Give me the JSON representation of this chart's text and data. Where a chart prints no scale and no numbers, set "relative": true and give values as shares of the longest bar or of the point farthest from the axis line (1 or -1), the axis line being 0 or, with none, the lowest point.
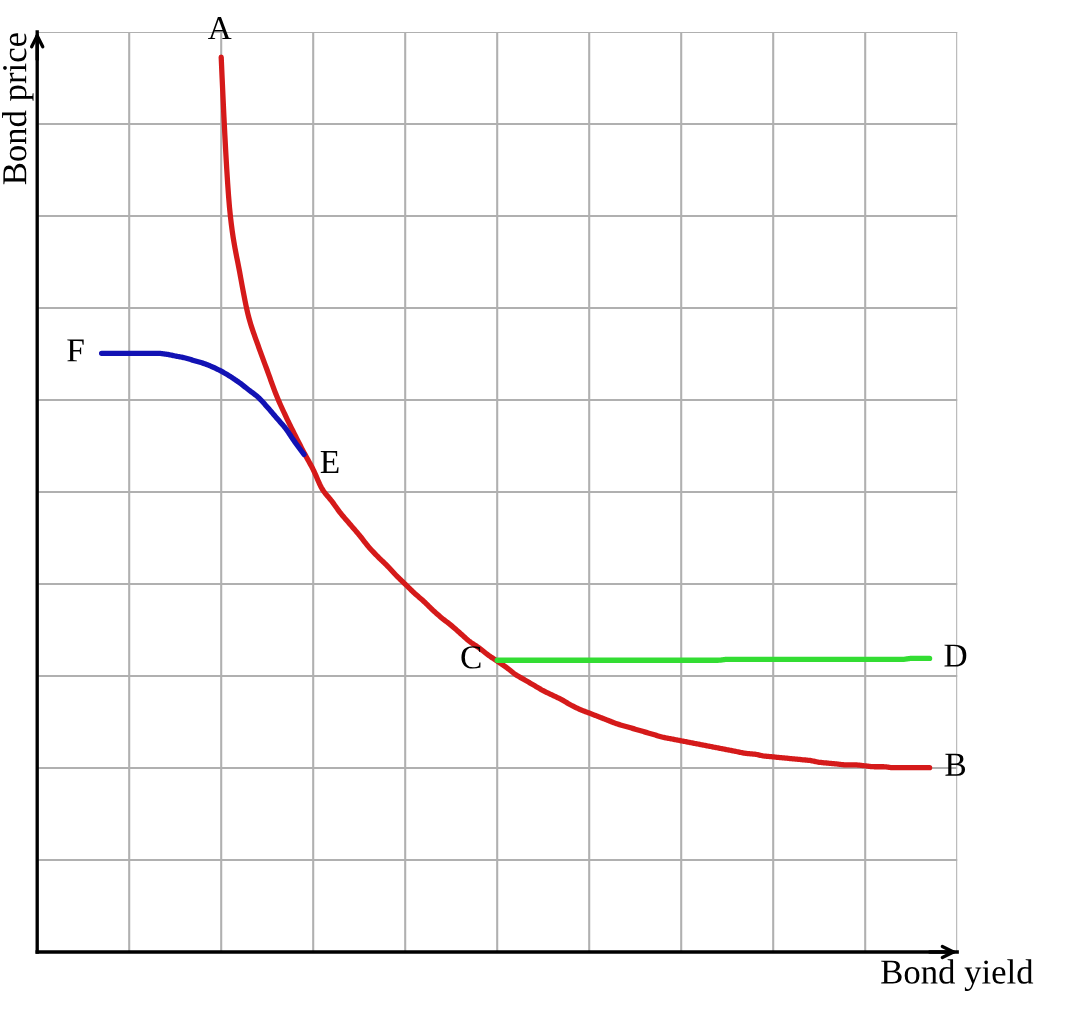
{
  "chart_data": {
    "type": "line",
    "xlabel": "Bond yield",
    "ylabel": "Bond price",
    "relative": true,
    "grid": true,
    "line_style": "solid",
    "categories": [
      null,
      null,
      null,
      null,
      null,
      null,
      null,
      null,
      null,
      null,
      null,
      null,
      null,
      null,
      null,
      null,
      null,
      null,
      null,
      null,
      null,
      null,
      null,
      null,
      null,
      null,
      null,
      null,
      null,
      null,
      null,
      null,
      null,
      null,
      null,
      null,
      null,
      null,
      null,
      null,
      null,
      null,
      null,
      null,
      null,
      null,
      null,
      null,
      null,
      null,
      null,
      null,
      null,
      null,
      null,
      null,
      null,
      null,
      null,
      null,
      null,
      null,
      null,
      null,
      null,
      null,
      null,
      null,
      null,
      null,
      null,
      null,
      null,
      null,
      null,
      null,
      null,
      null,
      null,
      null,
      null,
      null,
      null,
      null,
      null,
      null,
      null,
      null,
      null,
      null,
      null,
      null,
      null,
      null,
      null,
      null,
      null,
      null,
      null,
      null,
      null
    ],
    "series": [
      {
        "color": "#d51a1a",
        "values": [
          null,
          null,
          null,
          null,
          null,
          null,
          null,
          null,
          null,
          null,
          null,
          null,
          null,
          null,
          null,
          null,
          null,
          null,
          null,
          null,
          1,
          0.822,
          0.76,
          0.709,
          0.678,
          0.65,
          0.622,
          0.599,
          0.578,
          0.558,
          0.539,
          0.517,
          0.504,
          0.49,
          0.478,
          0.466,
          0.453,
          0.442,
          0.432,
          0.421,
          0.411,
          0.401,
          0.392,
          0.382,
          0.373,
          0.365,
          0.356,
          0.347,
          0.34,
          0.332,
          0.325,
          0.318,
          0.31,
          0.304,
          0.298,
          0.292,
          0.287,
          0.282,
          0.276,
          0.271,
          0.267,
          0.263,
          0.259,
          0.255,
          0.252,
          0.249,
          0.246,
          0.243,
          0.24,
          0.238,
          0.236,
          0.234,
          0.232,
          0.23,
          0.228,
          0.226,
          0.224,
          0.222,
          0.221,
          0.219,
          0.218,
          0.217,
          0.216,
          0.215,
          0.214,
          0.212,
          0.211,
          0.21,
          0.209,
          0.209,
          0.208,
          0.207,
          0.207,
          0.206,
          0.206,
          0.206,
          0.206,
          0.206,
          null,
          null,
          null
        ]
      },
      {
        "color": "#33dd33",
        "values": [
          null,
          null,
          null,
          null,
          null,
          null,
          null,
          null,
          null,
          null,
          null,
          null,
          null,
          null,
          null,
          null,
          null,
          null,
          null,
          null,
          null,
          null,
          null,
          null,
          null,
          null,
          null,
          null,
          null,
          null,
          null,
          null,
          null,
          null,
          null,
          null,
          null,
          null,
          null,
          null,
          null,
          null,
          null,
          null,
          null,
          null,
          null,
          null,
          null,
          null,
          0.326,
          0.326,
          0.326,
          0.326,
          0.326,
          0.326,
          0.326,
          0.326,
          0.326,
          0.326,
          0.326,
          0.326,
          0.326,
          0.326,
          0.326,
          0.326,
          0.326,
          0.326,
          0.326,
          0.326,
          0.326,
          0.326,
          0.326,
          0.326,
          0.326,
          0.327,
          0.327,
          0.327,
          0.327,
          0.327,
          0.327,
          0.327,
          0.327,
          0.327,
          0.327,
          0.327,
          0.327,
          0.327,
          0.327,
          0.327,
          0.327,
          0.327,
          0.327,
          0.327,
          0.327,
          0.328,
          0.328,
          0.328,
          null,
          null,
          null
        ]
      },
      {
        "color": "#1212b4",
        "values": [
          null,
          null,
          null,
          null,
          null,
          null,
          null,
          0.669,
          0.669,
          0.669,
          0.669,
          0.669,
          0.669,
          0.669,
          0.668,
          0.666,
          0.664,
          0.661,
          0.658,
          0.654,
          0.649,
          0.643,
          0.636,
          0.628,
          0.62,
          0.609,
          0.597,
          0.585,
          0.57,
          0.556,
          null,
          null,
          null,
          null,
          null,
          null,
          null,
          null,
          null,
          null,
          null,
          null,
          null,
          null,
          null,
          null,
          null,
          null,
          null,
          null,
          null,
          null,
          null,
          null,
          null,
          null,
          null,
          null,
          null,
          null,
          null,
          null,
          null,
          null,
          null,
          null,
          null,
          null,
          null,
          null,
          null,
          null,
          null,
          null,
          null,
          null,
          null,
          null,
          null,
          null,
          null,
          null,
          null,
          null,
          null,
          null,
          null,
          null,
          null,
          null,
          null,
          null,
          null,
          null,
          null,
          null,
          null,
          null,
          null,
          null,
          null
        ]
      }
    ],
    "annotations": [
      "A",
      "B",
      "C",
      "D",
      "F",
      "E"
    ]
  }
}
